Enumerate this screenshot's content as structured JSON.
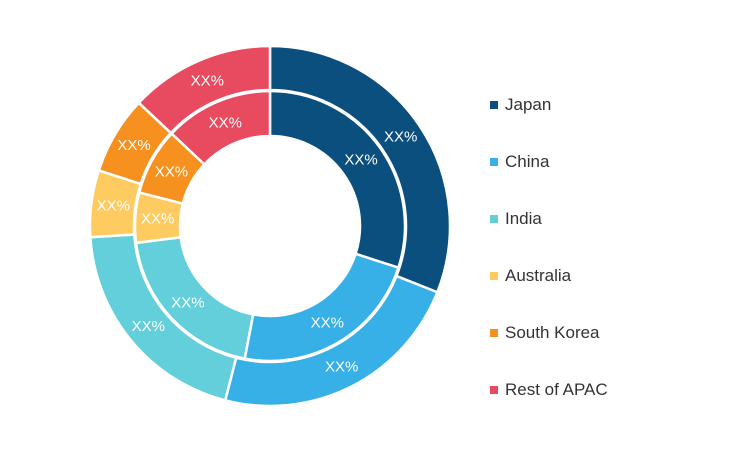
{
  "chart_data": {
    "type": "donut",
    "title": "",
    "categories": [
      "Japan",
      "China",
      "India",
      "Australia",
      "South Korea",
      "Rest of APAC"
    ],
    "colors": [
      "#0b4f7e",
      "#36b0e6",
      "#62cfdb",
      "#fecb60",
      "#f6911f",
      "#e84a5f"
    ],
    "series": [
      {
        "ring": "outer",
        "values": [
          31,
          23,
          20,
          6,
          7,
          13
        ],
        "labels": [
          "XX%",
          "XX%",
          "XX%",
          "XX%",
          "XX%",
          "XX%"
        ]
      },
      {
        "ring": "inner",
        "values": [
          30,
          23,
          20,
          6,
          8,
          13
        ],
        "labels": [
          "XX%",
          "XX%",
          "XX%",
          "XX%",
          "XX%",
          "XX%"
        ]
      }
    ],
    "legend_position": "right",
    "grid": false
  }
}
